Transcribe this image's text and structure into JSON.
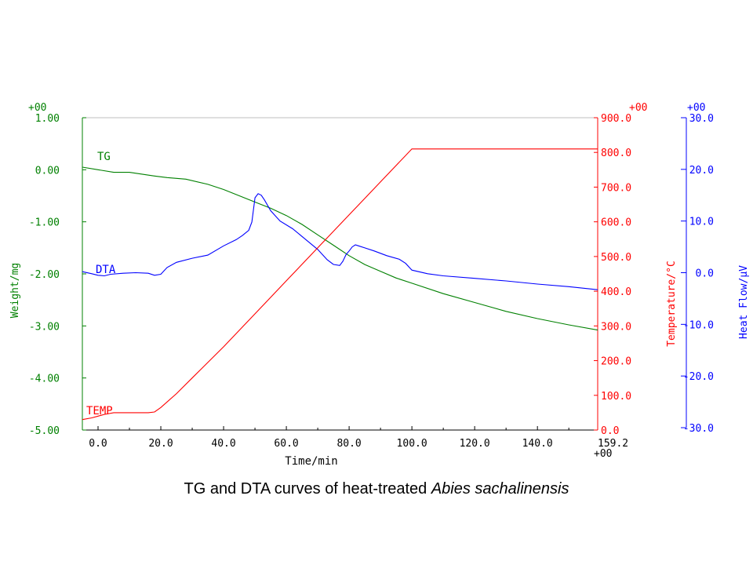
{
  "chart_data": {
    "type": "line",
    "caption_prefix": "TG and DTA curves of heat-treated ",
    "caption_species": "Abies sachalinensis",
    "xlabel": "Time/min",
    "xlim": [
      -5,
      159.2
    ],
    "x_ticks": [
      "0.0",
      "20.0",
      "40.0",
      "60.0",
      "80.0",
      "100.0",
      "120.0",
      "140.0"
    ],
    "x_end_label": "159.2",
    "x_end_exp": "+00",
    "axes": {
      "weight": {
        "label": "Weight/mg",
        "color": "#008000",
        "ylim": [
          -5,
          1
        ],
        "exp": "+00",
        "ticks": [
          "1.00",
          "0.00",
          "-1.00",
          "-2.00",
          "-3.00",
          "-4.00",
          "-5.00"
        ]
      },
      "temperature": {
        "label": "Temperature/°C",
        "color": "#ff0000",
        "ylim": [
          0,
          900
        ],
        "exp": "+00",
        "ticks": [
          "900.0",
          "800.0",
          "700.0",
          "600.0",
          "500.0",
          "400.0",
          "300.0",
          "200.0",
          "100.0",
          "0.0"
        ]
      },
      "heatflow": {
        "label": "Heat Flow/μV",
        "color": "#0000ff",
        "ylim": [
          -30,
          30
        ],
        "exp": "+00",
        "ticks": [
          "30.0",
          "20.0",
          "10.0",
          "0.0",
          "-10.0",
          "-20.0",
          "-30.0"
        ]
      }
    },
    "series": [
      {
        "name": "TG",
        "axis": "weight",
        "color": "#008000",
        "x": [
          -5,
          0,
          5,
          10,
          18,
          22,
          28,
          35,
          40,
          45,
          50,
          55,
          60,
          65,
          70,
          75,
          80,
          85,
          90,
          95,
          100,
          110,
          120,
          130,
          140,
          150,
          159.2
        ],
        "y": [
          0.05,
          0.0,
          -0.05,
          -0.05,
          -0.12,
          -0.15,
          -0.18,
          -0.28,
          -0.38,
          -0.5,
          -0.62,
          -0.74,
          -0.88,
          -1.05,
          -1.25,
          -1.45,
          -1.65,
          -1.82,
          -1.95,
          -2.08,
          -2.18,
          -2.38,
          -2.55,
          -2.72,
          -2.86,
          -2.98,
          -3.08
        ]
      },
      {
        "name": "DTA",
        "axis": "heatflow",
        "color": "#0000ff",
        "x": [
          -5,
          -2,
          0,
          2,
          4,
          8,
          12,
          16,
          18,
          20,
          22,
          25,
          30,
          35,
          40,
          44,
          46,
          48,
          49,
          50,
          51,
          52,
          53,
          55,
          58,
          62,
          66,
          70,
          73,
          75,
          77,
          78,
          79,
          80,
          81,
          82,
          83,
          85,
          88,
          92,
          96,
          98,
          100,
          105,
          110,
          120,
          130,
          140,
          150,
          159.2
        ],
        "y": [
          0.2,
          -0.2,
          -0.5,
          -0.6,
          -0.3,
          -0.1,
          0.0,
          -0.1,
          -0.5,
          -0.3,
          1.0,
          2.0,
          2.8,
          3.4,
          5.2,
          6.4,
          7.2,
          8.2,
          9.8,
          14.5,
          15.3,
          15.0,
          14.1,
          12.0,
          10.0,
          8.5,
          6.5,
          4.5,
          2.5,
          1.6,
          1.4,
          2.2,
          3.5,
          4.2,
          5.0,
          5.4,
          5.2,
          4.8,
          4.2,
          3.3,
          2.6,
          1.8,
          0.5,
          -0.2,
          -0.6,
          -1.1,
          -1.6,
          -2.2,
          -2.7,
          -3.3
        ]
      },
      {
        "name": "TEMP",
        "axis": "temperature",
        "color": "#ff0000",
        "x": [
          -5,
          -2,
          0,
          2,
          5,
          10,
          16,
          18,
          20,
          25,
          30,
          40,
          50,
          60,
          70,
          80,
          90,
          100,
          110,
          130,
          150,
          159.2
        ],
        "y": [
          30,
          35,
          40,
          45,
          50,
          50,
          50,
          52,
          65,
          105,
          150,
          240,
          335,
          430,
          525,
          620,
          715,
          810,
          810,
          810,
          810,
          810
        ]
      }
    ]
  }
}
